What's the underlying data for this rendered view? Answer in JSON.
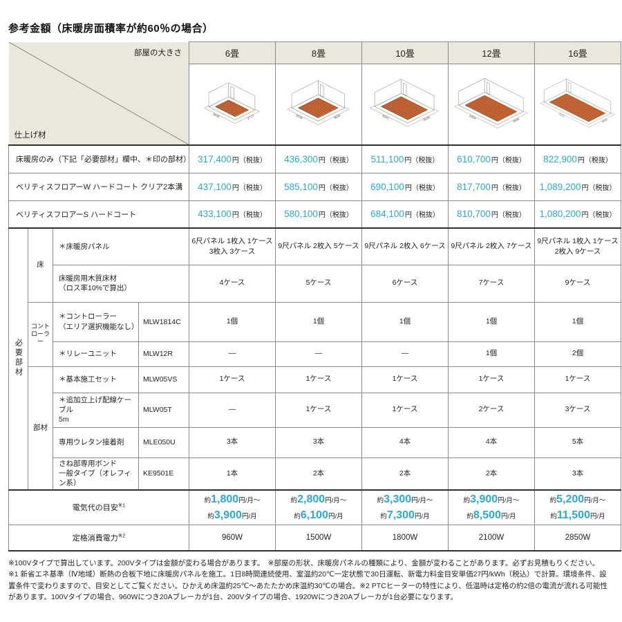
{
  "title": "参考金額（床暖房面積率が約60％の場合）",
  "corner": {
    "top_right": "部屋の大きさ",
    "bottom_left": "仕上げ材"
  },
  "columns": [
    "6畳",
    "8畳",
    "10畳",
    "12畳",
    "16畳"
  ],
  "rooms": [
    {
      "dx": 3.64,
      "dy": 2.73,
      "dim_x": "3636",
      "dim_y": "2727"
    },
    {
      "dx": 3.64,
      "dy": 3.64,
      "dim_x": "3636",
      "dim_y": "3636"
    },
    {
      "dx": 4.55,
      "dy": 3.64,
      "dim_x": "4545",
      "dim_y": "3636"
    },
    {
      "dx": 5.46,
      "dy": 3.64,
      "dim_x": "5454",
      "dim_y": "3636"
    },
    {
      "dx": 7.28,
      "dy": 3.64,
      "dim_x": "7272",
      "dim_y": "3636"
    }
  ],
  "prices": {
    "suffix": "円（税抜）",
    "rows": [
      {
        "label": "床暖房のみ（下記「必要部材」欄中、＊印の部材）",
        "values": [
          "317,400",
          "436,300",
          "511,100",
          "610,700",
          "822,900"
        ]
      },
      {
        "label": "ベリティスフロアーW ハードコート クリア2本溝",
        "values": [
          "437,100",
          "585,100",
          "690,100",
          "817,700",
          "1,089,200"
        ]
      },
      {
        "label": "ベリティスフロアーS ハードコート",
        "values": [
          "433,100",
          "580,100",
          "684,100",
          "810,700",
          "1,080,200"
        ]
      }
    ]
  },
  "parts": {
    "side_label": "必要部材",
    "groups": [
      {
        "label": "床"
      },
      {
        "label": "コント\nローラー"
      },
      {
        "label": "部材"
      }
    ],
    "rows": [
      {
        "item": "＊床暖房パネル",
        "values": [
          "6尺パネル 1枚入 1ケース\n3枚入 3ケース",
          "9尺パネル 2枚入 5ケース",
          "9尺パネル 2枚入 6ケース",
          "9尺パネル 2枚入 7ケース",
          "9尺パネル 1枚入 1ケース\n2枚入 9ケース"
        ]
      },
      {
        "item": "床暖房用木質床材\n（ロス率10%で算出）",
        "values": [
          "4ケース",
          "5ケース",
          "6ケース",
          "7ケース",
          "9ケース"
        ]
      },
      {
        "item": "＊コントローラー\n（エリア選択機能なし）",
        "model": "MLW1814C",
        "values": [
          "1個",
          "1個",
          "1個",
          "1個",
          "1個"
        ]
      },
      {
        "item": "＊リレーユニット",
        "model": "MLW12R",
        "values": [
          "—",
          "—",
          "—",
          "1個",
          "2個"
        ]
      },
      {
        "item": "＊基本施工セット",
        "model": "MLW05VS",
        "values": [
          "1ケース",
          "1ケース",
          "1ケース",
          "1ケース",
          "1ケース"
        ]
      },
      {
        "item": "＊追加立上げ配線ケーブル\n5m",
        "model": "MLW05T",
        "values": [
          "—",
          "1ケース",
          "1ケース",
          "2ケース",
          "3ケース"
        ]
      },
      {
        "item": "専用ウレタン接着剤",
        "model": "MLE050U",
        "values": [
          "3本",
          "3本",
          "4本",
          "4本",
          "5本"
        ]
      },
      {
        "item": "さね部専用ボンド\n一般タイプ（オレフィン系）",
        "model": "KE9501E",
        "values": [
          "1本",
          "2本",
          "2本",
          "2本",
          "3本"
        ]
      }
    ]
  },
  "electric": {
    "label": "電気代の目安",
    "sup": "※1",
    "approx": "約",
    "unit_from": "円/月～",
    "unit": "円/月",
    "values": [
      [
        "1,800",
        "3,900"
      ],
      [
        "2,800",
        "6,100"
      ],
      [
        "3,300",
        "7,300"
      ],
      [
        "3,900",
        "8,500"
      ],
      [
        "5,200",
        "11,500"
      ]
    ]
  },
  "power": {
    "label": "定格消費電力",
    "sup": "※2",
    "values": [
      "960W",
      "1500W",
      "1800W",
      "2100W",
      "2850W"
    ]
  },
  "notes": {
    "line1": "※100Vタイプで算出しています。200Vタイプは金額が変わる場合があります。　※部屋の形状、床暖房パネルの種類により、金額が変わることがあります。必ずお見積もりください。",
    "line2": "※1 新省エネ基準（Ⅳ地域）断熱の合板下地に床暖房パネルを施工。1日8時間連続使用、室温約20℃一定状態で30日運転、新電力料金目安単価27円/kWh（税込）で計算。環境条件、設置条件で変わりますので、目安としてご覧ください。ひかえめ床温約25℃～あたたかめ床温約30℃の場合。※2 PTCヒーターの特性により、低温時は定格の約2倍の電流が流れる可能性があります。100Vタイプの場合、960Wにつき20Aブレーカが1台、200Vタイプの場合、1920Wにつき20Aブレーカが1台必要になります。"
  },
  "colors": {
    "accent": "#2ba7d8",
    "header_bg": "#eae7dd",
    "panel_orange": "#d2703d"
  }
}
